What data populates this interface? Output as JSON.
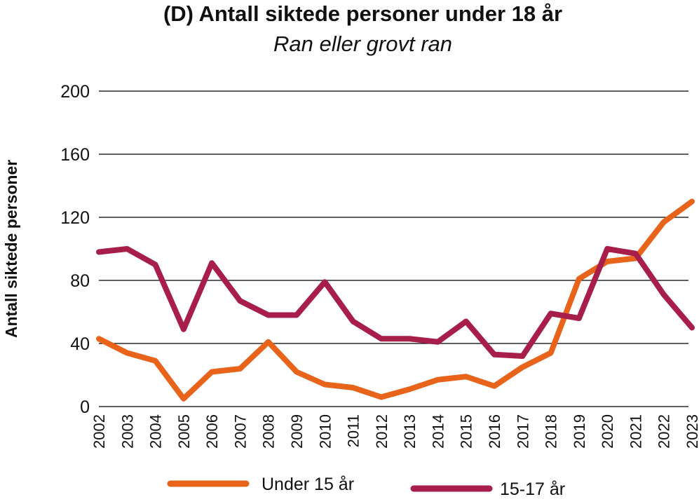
{
  "chart_data": {
    "type": "line",
    "title": "(D) Antall siktede personer under 18 år",
    "subtitle": "Ran eller grovt ran",
    "xlabel": "",
    "ylabel": "Antall siktede personer",
    "ylim": [
      0,
      200
    ],
    "yticks": [
      "0",
      "40",
      "80",
      "120",
      "160",
      "200"
    ],
    "grid": true,
    "legend_position": "bottom",
    "categories": [
      "2002",
      "2003",
      "2004",
      "2005",
      "2006",
      "2007",
      "2008",
      "2009",
      "2010",
      "2011",
      "2012",
      "2013",
      "2014",
      "2015",
      "2016",
      "2017",
      "2018",
      "2019",
      "2020",
      "2021",
      "2022",
      "2023"
    ],
    "series": [
      {
        "name": "Under 15 år",
        "color": "#e8641b",
        "values": [
          43,
          34,
          29,
          5,
          22,
          24,
          41,
          22,
          14,
          12,
          6,
          11,
          17,
          19,
          13,
          25,
          34,
          81,
          92,
          94,
          117,
          130
        ]
      },
      {
        "name": "15-17 år",
        "color": "#a81e4a",
        "values": [
          98,
          100,
          90,
          49,
          91,
          67,
          58,
          58,
          79,
          54,
          43,
          43,
          41,
          54,
          33,
          32,
          59,
          56,
          100,
          97,
          71,
          50
        ]
      }
    ]
  }
}
